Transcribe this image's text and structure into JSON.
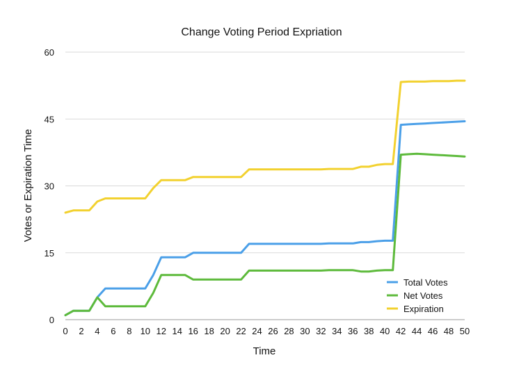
{
  "chart_data": {
    "type": "line",
    "title": "Change Voting Period Expriation",
    "xlabel": "Time",
    "ylabel": "Votes or Expiration Time",
    "xlim": [
      0,
      50
    ],
    "ylim": [
      0,
      60
    ],
    "xticks": [
      0,
      2,
      4,
      6,
      8,
      10,
      12,
      14,
      16,
      18,
      20,
      22,
      24,
      26,
      28,
      30,
      32,
      34,
      36,
      38,
      40,
      42,
      44,
      46,
      48,
      50
    ],
    "yticks": [
      0,
      15,
      30,
      45,
      60
    ],
    "grid": true,
    "legend_position": "bottom-right",
    "series": [
      {
        "name": "Total Votes",
        "color": "#4a9fe8",
        "points": [
          [
            0,
            1
          ],
          [
            1,
            2
          ],
          [
            2,
            2
          ],
          [
            3,
            2
          ],
          [
            4,
            5
          ],
          [
            5,
            7
          ],
          [
            6,
            7
          ],
          [
            7,
            7
          ],
          [
            8,
            7
          ],
          [
            9,
            7
          ],
          [
            10,
            7
          ],
          [
            11,
            10
          ],
          [
            12,
            14
          ],
          [
            13,
            14
          ],
          [
            14,
            14
          ],
          [
            15,
            14
          ],
          [
            16,
            15
          ],
          [
            17,
            15
          ],
          [
            18,
            15
          ],
          [
            19,
            15
          ],
          [
            20,
            15
          ],
          [
            21,
            15
          ],
          [
            22,
            15
          ],
          [
            23,
            17
          ],
          [
            24,
            17
          ],
          [
            25,
            17
          ],
          [
            26,
            17
          ],
          [
            27,
            17
          ],
          [
            28,
            17
          ],
          [
            29,
            17
          ],
          [
            30,
            17
          ],
          [
            31,
            17
          ],
          [
            32,
            17
          ],
          [
            33,
            17.1
          ],
          [
            34,
            17.1
          ],
          [
            35,
            17.1
          ],
          [
            36,
            17.1
          ],
          [
            37,
            17.4
          ],
          [
            38,
            17.4
          ],
          [
            39,
            17.6
          ],
          [
            40,
            17.7
          ],
          [
            41,
            17.7
          ],
          [
            42,
            43.7
          ],
          [
            43,
            43.8
          ],
          [
            44,
            43.9
          ],
          [
            45,
            44
          ],
          [
            46,
            44.1
          ],
          [
            47,
            44.2
          ],
          [
            48,
            44.3
          ],
          [
            49,
            44.4
          ],
          [
            50,
            44.5
          ]
        ]
      },
      {
        "name": "Net Votes",
        "color": "#5dba3b",
        "points": [
          [
            0,
            1
          ],
          [
            1,
            2
          ],
          [
            2,
            2
          ],
          [
            3,
            2
          ],
          [
            4,
            5
          ],
          [
            5,
            3
          ],
          [
            6,
            3
          ],
          [
            7,
            3
          ],
          [
            8,
            3
          ],
          [
            9,
            3
          ],
          [
            10,
            3
          ],
          [
            11,
            6
          ],
          [
            12,
            10
          ],
          [
            13,
            10
          ],
          [
            14,
            10
          ],
          [
            15,
            10
          ],
          [
            16,
            9
          ],
          [
            17,
            9
          ],
          [
            18,
            9
          ],
          [
            19,
            9
          ],
          [
            20,
            9
          ],
          [
            21,
            9
          ],
          [
            22,
            9
          ],
          [
            23,
            11
          ],
          [
            24,
            11
          ],
          [
            25,
            11
          ],
          [
            26,
            11
          ],
          [
            27,
            11
          ],
          [
            28,
            11
          ],
          [
            29,
            11
          ],
          [
            30,
            11
          ],
          [
            31,
            11
          ],
          [
            32,
            11
          ],
          [
            33,
            11.1
          ],
          [
            34,
            11.1
          ],
          [
            35,
            11.1
          ],
          [
            36,
            11.1
          ],
          [
            37,
            10.8
          ],
          [
            38,
            10.8
          ],
          [
            39,
            11
          ],
          [
            40,
            11.1
          ],
          [
            41,
            11.1
          ],
          [
            42,
            37
          ],
          [
            43,
            37.1
          ],
          [
            44,
            37.2
          ],
          [
            45,
            37.1
          ],
          [
            46,
            37
          ],
          [
            47,
            36.9
          ],
          [
            48,
            36.8
          ],
          [
            49,
            36.7
          ],
          [
            50,
            36.6
          ]
        ]
      },
      {
        "name": "Expiration",
        "color": "#f2d12f",
        "points": [
          [
            0,
            24
          ],
          [
            1,
            24.5
          ],
          [
            2,
            24.5
          ],
          [
            3,
            24.5
          ],
          [
            4,
            26.5
          ],
          [
            5,
            27.2
          ],
          [
            6,
            27.2
          ],
          [
            7,
            27.2
          ],
          [
            8,
            27.2
          ],
          [
            9,
            27.2
          ],
          [
            10,
            27.2
          ],
          [
            11,
            29.5
          ],
          [
            12,
            31.3
          ],
          [
            13,
            31.3
          ],
          [
            14,
            31.3
          ],
          [
            15,
            31.3
          ],
          [
            16,
            32
          ],
          [
            17,
            32
          ],
          [
            18,
            32
          ],
          [
            19,
            32
          ],
          [
            20,
            32
          ],
          [
            21,
            32
          ],
          [
            22,
            32
          ],
          [
            23,
            33.7
          ],
          [
            24,
            33.7
          ],
          [
            25,
            33.7
          ],
          [
            26,
            33.7
          ],
          [
            27,
            33.7
          ],
          [
            28,
            33.7
          ],
          [
            29,
            33.7
          ],
          [
            30,
            33.7
          ],
          [
            31,
            33.7
          ],
          [
            32,
            33.7
          ],
          [
            33,
            33.8
          ],
          [
            34,
            33.8
          ],
          [
            35,
            33.8
          ],
          [
            36,
            33.8
          ],
          [
            37,
            34.3
          ],
          [
            38,
            34.3
          ],
          [
            39,
            34.7
          ],
          [
            40,
            34.9
          ],
          [
            41,
            34.9
          ],
          [
            42,
            53.3
          ],
          [
            43,
            53.4
          ],
          [
            44,
            53.4
          ],
          [
            45,
            53.4
          ],
          [
            46,
            53.5
          ],
          [
            47,
            53.5
          ],
          [
            48,
            53.5
          ],
          [
            49,
            53.6
          ],
          [
            50,
            53.6
          ]
        ]
      }
    ]
  }
}
